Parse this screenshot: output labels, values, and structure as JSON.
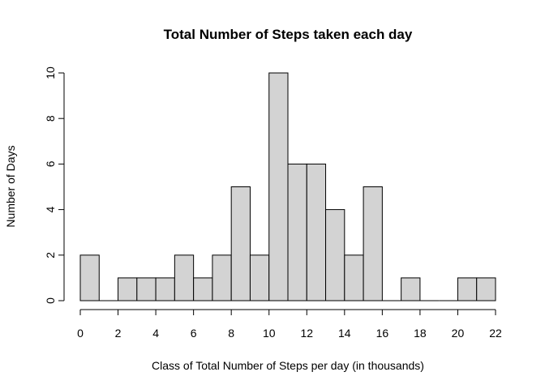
{
  "chart_data": {
    "type": "bar",
    "title": "Total Number of Steps taken each day",
    "xlabel": "Class of Total Number of Steps per day (in thousands)",
    "ylabel": "Number of Days",
    "bin_edges": [
      0,
      1,
      2,
      3,
      4,
      5,
      6,
      7,
      8,
      9,
      10,
      11,
      12,
      13,
      14,
      15,
      16,
      17,
      18,
      19,
      20,
      21,
      22
    ],
    "values": [
      2,
      0,
      1,
      1,
      1,
      2,
      1,
      2,
      5,
      2,
      10,
      6,
      6,
      4,
      2,
      5,
      0,
      1,
      0,
      0,
      1,
      1
    ],
    "xlim": [
      0,
      22
    ],
    "ylim": [
      0,
      10
    ],
    "x_ticks": [
      0,
      2,
      4,
      6,
      8,
      10,
      12,
      14,
      16,
      18,
      20,
      22
    ],
    "y_ticks": [
      0,
      2,
      4,
      6,
      8,
      10
    ],
    "bar_color": "#d3d3d3",
    "grid": false
  }
}
